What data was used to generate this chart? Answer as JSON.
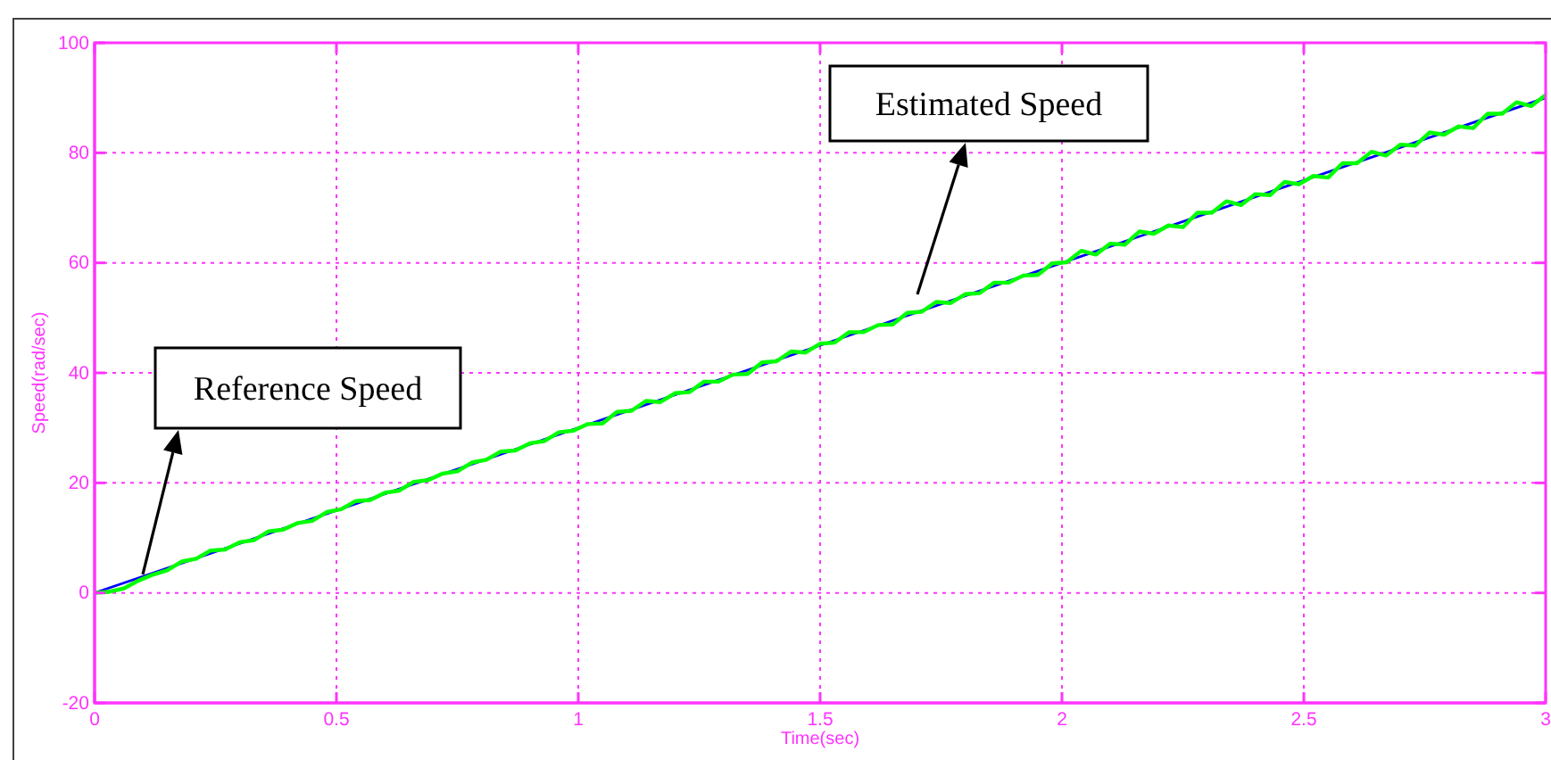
{
  "chart_data": {
    "type": "line",
    "xlabel": "Time(sec)",
    "ylabel": "Speed(rad/sec)",
    "xlim": [
      0,
      3
    ],
    "ylim": [
      -20,
      100
    ],
    "xticks": [
      0,
      0.5,
      1,
      1.5,
      2,
      2.5,
      3
    ],
    "yticks": [
      -20,
      0,
      20,
      40,
      60,
      80,
      100
    ],
    "grid": true,
    "series": [
      {
        "color": "#0000ff",
        "x": [
          0,
          3
        ],
        "values": [
          0,
          90
        ]
      },
      {
        "color": "#00ff00",
        "x": [
          0,
          0.03,
          0.06,
          0.09,
          0.12,
          0.15,
          0.18,
          0.21,
          0.24,
          0.27,
          0.3,
          0.33,
          0.36,
          0.39,
          0.42,
          0.45,
          0.48,
          0.51,
          0.54,
          0.57,
          0.6,
          0.63,
          0.66,
          0.69,
          0.72,
          0.75,
          0.78,
          0.81,
          0.84,
          0.87,
          0.9,
          0.93,
          0.96,
          0.99,
          1.02,
          1.05,
          1.08,
          1.11,
          1.14,
          1.17,
          1.2,
          1.23,
          1.26,
          1.29,
          1.32,
          1.35,
          1.38,
          1.41,
          1.44,
          1.47,
          1.5,
          1.53,
          1.56,
          1.59,
          1.62,
          1.65,
          1.68,
          1.71,
          1.74,
          1.77,
          1.8,
          1.83,
          1.86,
          1.89,
          1.92,
          1.95,
          1.98,
          2.01,
          2.04,
          2.07,
          2.1,
          2.13,
          2.16,
          2.19,
          2.22,
          2.25,
          2.28,
          2.31,
          2.34,
          2.37,
          2.4,
          2.43,
          2.46,
          2.49,
          2.52,
          2.55,
          2.58,
          2.61,
          2.64,
          2.67,
          2.7,
          2.73,
          2.76,
          2.79,
          2.82,
          2.85,
          2.88,
          2.91,
          2.94,
          2.97,
          3
        ],
        "values": [
          0,
          0.2,
          0.8,
          2.2,
          3.3,
          4.1,
          5.7,
          6.2,
          7.7,
          7.9,
          9.2,
          9.6,
          11.2,
          11.5,
          12.7,
          13.1,
          14.7,
          15.2,
          16.7,
          16.9,
          18.2,
          18.6,
          20.2,
          20.5,
          21.7,
          22.1,
          23.7,
          24.2,
          25.7,
          25.9,
          27.2,
          27.6,
          29.2,
          29.5,
          30.7,
          30.8,
          32.9,
          33.1,
          34.9,
          34.7,
          36.3,
          36.5,
          38.4,
          38.4,
          39.7,
          39.8,
          41.9,
          42.1,
          43.9,
          43.7,
          45.3,
          45.5,
          47.4,
          47.4,
          48.7,
          48.8,
          50.9,
          51.1,
          52.9,
          52.7,
          54.3,
          54.5,
          56.4,
          56.4,
          57.7,
          57.8,
          59.9,
          60.1,
          62.2,
          61.5,
          63.5,
          63.3,
          65.7,
          65.3,
          66.8,
          66.5,
          69.1,
          69.1,
          71.2,
          70.5,
          72.5,
          72.3,
          74.7,
          74.3,
          75.8,
          75.5,
          78.1,
          78.1,
          80.2,
          79.5,
          81.5,
          81.3,
          83.7,
          83.3,
          84.8,
          84.5,
          87.1,
          87.1,
          89.2,
          88.5,
          90.5
        ]
      }
    ],
    "annotations": [
      "Reference Speed",
      "Estimated Speed"
    ]
  }
}
